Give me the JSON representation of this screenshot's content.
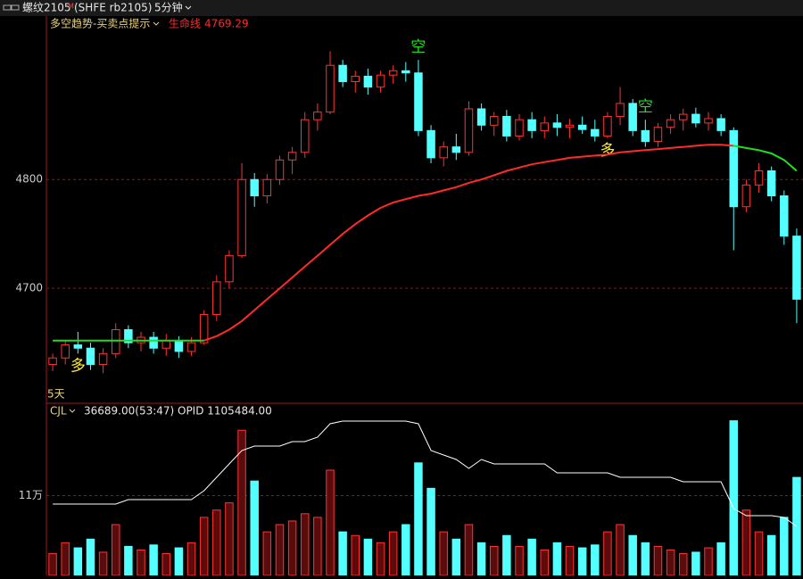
{
  "header": {
    "symbol": "螺纹2105",
    "flag": "M",
    "code": "(SHFE rb2105)",
    "period": "5分钟"
  },
  "chart_data": [
    {
      "type": "candlestick",
      "title": "多空趋势-买卖点提示",
      "note": "5天",
      "open": [
        4630,
        4636,
        4648,
        4645,
        4630,
        4640,
        4662,
        4650,
        4655,
        4645,
        4652,
        4642,
        4650,
        4676,
        4706,
        4730,
        4800,
        4785,
        4800,
        4818,
        4825,
        4855,
        4862,
        4905,
        4890,
        4895,
        4885,
        4896,
        4900,
        4898,
        4845,
        4820,
        4830,
        4825,
        4865,
        4850,
        4858,
        4840,
        4855,
        4845,
        4852,
        4848,
        4850,
        4846,
        4840,
        4858,
        4870,
        4845,
        4835,
        4848,
        4855,
        4860,
        4852,
        4856,
        4845,
        4775,
        4795,
        4808,
        4785,
        4748
      ],
      "high": [
        4640,
        4652,
        4660,
        4650,
        4645,
        4668,
        4666,
        4660,
        4660,
        4658,
        4656,
        4655,
        4680,
        4712,
        4735,
        4815,
        4806,
        4805,
        4822,
        4830,
        4862,
        4870,
        4918,
        4910,
        4900,
        4902,
        4900,
        4905,
        4908,
        4910,
        4850,
        4835,
        4842,
        4872,
        4870,
        4862,
        4864,
        4860,
        4862,
        4858,
        4860,
        4856,
        4858,
        4855,
        4862,
        4885,
        4874,
        4855,
        4852,
        4860,
        4865,
        4866,
        4862,
        4860,
        4848,
        4800,
        4815,
        4812,
        4790,
        4755
      ],
      "low": [
        4624,
        4630,
        4640,
        4625,
        4622,
        4636,
        4645,
        4642,
        4640,
        4638,
        4636,
        4638,
        4648,
        4670,
        4700,
        4728,
        4775,
        4778,
        4795,
        4805,
        4820,
        4845,
        4860,
        4885,
        4880,
        4878,
        4880,
        4888,
        4890,
        4840,
        4815,
        4812,
        4818,
        4822,
        4845,
        4840,
        4835,
        4836,
        4838,
        4838,
        4840,
        4838,
        4842,
        4835,
        4838,
        4850,
        4840,
        4830,
        4830,
        4842,
        4845,
        4848,
        4845,
        4840,
        4735,
        4770,
        4788,
        4780,
        4740,
        4668
      ],
      "close": [
        4636,
        4648,
        4645,
        4630,
        4640,
        4662,
        4650,
        4655,
        4645,
        4652,
        4642,
        4650,
        4676,
        4706,
        4730,
        4800,
        4785,
        4800,
        4818,
        4825,
        4855,
        4862,
        4905,
        4890,
        4895,
        4885,
        4896,
        4900,
        4898,
        4845,
        4820,
        4830,
        4825,
        4865,
        4850,
        4858,
        4840,
        4855,
        4845,
        4852,
        4848,
        4850,
        4846,
        4840,
        4858,
        4870,
        4845,
        4835,
        4848,
        4855,
        4860,
        4852,
        4856,
        4845,
        4775,
        4795,
        4808,
        4785,
        4748,
        4690
      ],
      "signals": [
        null,
        null,
        "多",
        null,
        null,
        null,
        null,
        null,
        null,
        null,
        null,
        null,
        null,
        null,
        null,
        null,
        null,
        null,
        null,
        null,
        null,
        null,
        null,
        null,
        null,
        null,
        null,
        null,
        null,
        "空",
        null,
        null,
        null,
        null,
        null,
        null,
        null,
        null,
        null,
        null,
        null,
        null,
        null,
        null,
        "多",
        null,
        null,
        "空",
        null,
        null,
        null,
        null,
        null,
        null,
        null,
        null,
        null,
        null,
        null,
        null
      ],
      "lifeline": {
        "name": "生命线",
        "value": 4769.29,
        "up_color": "#ff2a2a",
        "down_color": "#22dd22",
        "up": [
          null,
          null,
          null,
          null,
          null,
          null,
          null,
          null,
          null,
          null,
          null,
          null,
          4652,
          4656,
          4662,
          4670,
          4680,
          4690,
          4700,
          4710,
          4720,
          4730,
          4740,
          4750,
          4759,
          4767,
          4774,
          4779,
          4782,
          4785,
          4787,
          4790,
          4793,
          4797,
          4800,
          4804,
          4808,
          4811,
          4814,
          4816,
          4818,
          4820,
          4821,
          4822,
          4823,
          4825,
          4826,
          4827,
          4828,
          4829,
          4830,
          4831,
          4832,
          4832,
          4831,
          null,
          null,
          null,
          null,
          null
        ],
        "down": [
          4652,
          4652,
          4652,
          4652,
          4652,
          4652,
          4652,
          4652,
          4652,
          4652,
          4652,
          4652,
          4652,
          null,
          null,
          null,
          null,
          null,
          null,
          null,
          null,
          null,
          null,
          null,
          null,
          null,
          null,
          null,
          null,
          null,
          null,
          null,
          null,
          null,
          null,
          null,
          null,
          null,
          null,
          null,
          null,
          null,
          null,
          null,
          null,
          null,
          null,
          null,
          null,
          null,
          null,
          null,
          null,
          null,
          4831,
          4829,
          4827,
          4824,
          4818,
          4808
        ]
      },
      "up_color": "#ff3232",
      "down_color": "#54ffff",
      "ylim": [
        4596,
        4947
      ],
      "yticks": [
        4700,
        4800
      ],
      "grid": true
    },
    {
      "type": "bar",
      "title": "CJL",
      "subtitle": "36689.00(53:47)",
      "oi_label": "OPID 1105484.00",
      "values": [
        30000,
        45000,
        38000,
        50000,
        32000,
        70000,
        40000,
        35000,
        42000,
        30000,
        38000,
        45000,
        80000,
        90000,
        100000,
        200000,
        130000,
        60000,
        70000,
        75000,
        85000,
        80000,
        145000,
        60000,
        55000,
        50000,
        45000,
        60000,
        70000,
        155000,
        120000,
        60000,
        50000,
        70000,
        45000,
        40000,
        55000,
        40000,
        50000,
        35000,
        45000,
        40000,
        38000,
        42000,
        60000,
        70000,
        55000,
        45000,
        40000,
        35000,
        30000,
        32000,
        38000,
        45000,
        213000,
        90000,
        60000,
        55000,
        80000,
        135000
      ],
      "oi": {
        "color": "#ffffff",
        "axis": "y2",
        "values": [
          1125600,
          1125600,
          1125600,
          1125600,
          1125600,
          1125600,
          1128450,
          1128450,
          1128450,
          1128450,
          1128450,
          1128450,
          1134150,
          1142700,
          1151250,
          1159800,
          1162650,
          1162650,
          1162650,
          1165500,
          1165500,
          1168350,
          1176900,
          1178610,
          1178610,
          1178610,
          1178610,
          1178610,
          1178610,
          1176900,
          1159800,
          1156950,
          1154100,
          1148400,
          1154100,
          1151250,
          1151250,
          1151250,
          1151250,
          1151250,
          1145550,
          1145550,
          1145550,
          1145550,
          1145550,
          1142700,
          1142700,
          1142700,
          1142700,
          1142700,
          1139850,
          1139850,
          1139850,
          1139850,
          1122750,
          1118190,
          1118190,
          1118190,
          1117050,
          1111350
        ]
      },
      "ylim": [
        0,
        215000
      ],
      "yticks": [
        {
          "value": 110000,
          "label": "11万"
        }
      ],
      "y2lim": [
        1080000,
        1190000
      ],
      "grid": true
    }
  ]
}
